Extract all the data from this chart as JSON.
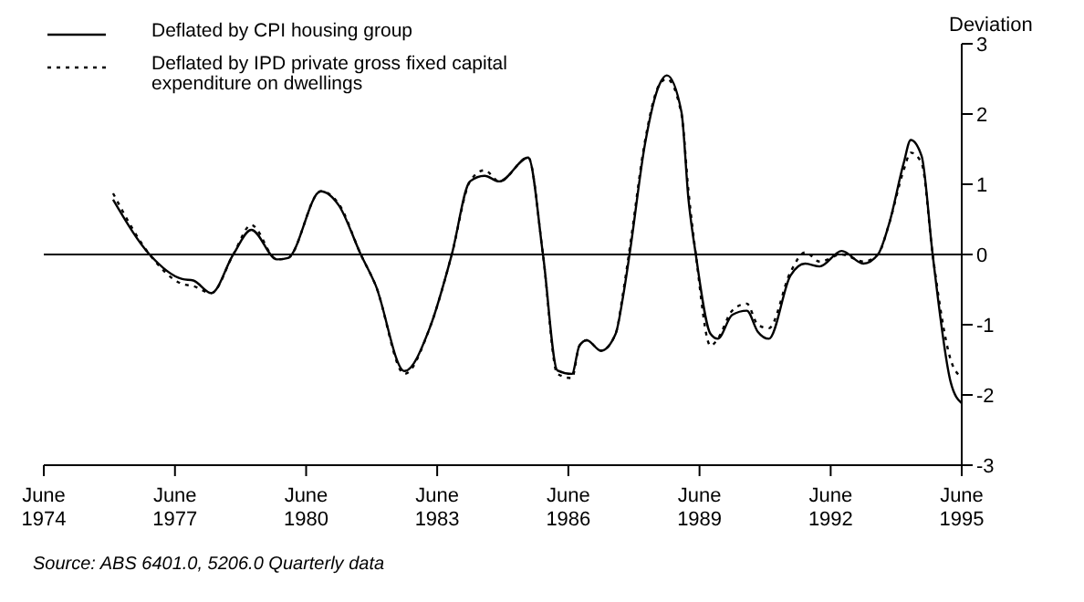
{
  "chart_data": {
    "type": "line",
    "ylabel": "Deviation",
    "annotations": [
      "Source: ABS 6401.0, 5206.0 Quarterly data"
    ],
    "x": [
      "1976-01",
      "1976-11",
      "1977-08",
      "1977-11",
      "1978-04",
      "1978-10",
      "1979-03",
      "1979-10",
      "1980-01",
      "1980-10",
      "1981-03",
      "1981-09",
      "1982-01",
      "1982-09",
      "1983-04",
      "1983-10",
      "1984-03",
      "1984-07",
      "1984-11",
      "1985-07",
      "1985-11",
      "1986-03",
      "1986-07",
      "1986-09",
      "1986-11",
      "1987-03",
      "1987-07",
      "1987-09",
      "1987-11",
      "1988-03",
      "1988-07",
      "1988-09",
      "1989-01",
      "1989-03",
      "1989-05",
      "1989-09",
      "1989-11",
      "1990-03",
      "1990-07",
      "1990-10",
      "1991-01",
      "1991-07",
      "1991-11",
      "1992-03",
      "1992-09",
      "1993-03",
      "1993-07",
      "1993-10",
      "1994-02",
      "1994-04",
      "1994-07",
      "1994-10",
      "1995-03",
      "1995-06"
    ],
    "series": [
      {
        "name": "Deflated by CPI housing group",
        "color": "#000000",
        "line_style": "solid",
        "values": [
          0.78,
          0,
          -0.35,
          -0.37,
          -0.55,
          0,
          0.35,
          -0.07,
          -0.05,
          0.9,
          0.7,
          0,
          -0.43,
          -1.66,
          -1.04,
          0,
          1.04,
          1.12,
          1.04,
          1.38,
          0,
          -1.65,
          -1.7,
          -1.3,
          -1.22,
          -1.37,
          -1.13,
          -0.6,
          0.08,
          1.56,
          2.42,
          2.55,
          2.03,
          0.78,
          0,
          -1.13,
          -1.2,
          -0.86,
          -0.8,
          -1.1,
          -1.2,
          -0.3,
          -0.13,
          -0.17,
          0.05,
          -0.13,
          0,
          0.43,
          1.3,
          1.63,
          1.4,
          0,
          -1.82,
          -2.12
        ]
      },
      {
        "name": "Deflated by IPD private gross fixed capital expenditure on dwellings",
        "color": "#000000",
        "line_style": "dotted",
        "values": [
          0.87,
          0,
          -0.42,
          -0.45,
          -0.55,
          0,
          0.42,
          -0.07,
          -0.05,
          0.9,
          0.72,
          0,
          -0.43,
          -1.7,
          -1.04,
          0,
          1.04,
          1.2,
          1.04,
          1.38,
          0,
          -1.7,
          -1.76,
          -1.3,
          -1.22,
          -1.37,
          -1.13,
          -0.55,
          0.15,
          1.6,
          2.42,
          2.5,
          2.0,
          0.9,
          0,
          -1.3,
          -1.2,
          -0.8,
          -0.7,
          -1.0,
          -1.05,
          -0.25,
          0.03,
          -0.1,
          0.0,
          -0.1,
          0,
          0.43,
          1.2,
          1.45,
          1.3,
          0,
          -1.5,
          -1.75
        ]
      }
    ],
    "xlim": [
      "1974-06",
      "1995-06"
    ],
    "xticks": [
      {
        "value": "1974-06",
        "label": "June 1974"
      },
      {
        "value": "1977-06",
        "label": "June 1977"
      },
      {
        "value": "1980-06",
        "label": "June 1980"
      },
      {
        "value": "1983-06",
        "label": "June 1983"
      },
      {
        "value": "1986-06",
        "label": "June 1986"
      },
      {
        "value": "1989-06",
        "label": "June 1989"
      },
      {
        "value": "1992-06",
        "label": "June 1992"
      },
      {
        "value": "1995-06",
        "label": "June 1995"
      }
    ],
    "ylim": [
      -3,
      3
    ],
    "yticks": [
      -3,
      -2,
      -1,
      0,
      1,
      2,
      3
    ],
    "ref_lines": [
      {
        "axis": "y",
        "value": 0,
        "color": "#000000"
      }
    ],
    "grid": false,
    "legend": "top left",
    "marker": "none"
  }
}
